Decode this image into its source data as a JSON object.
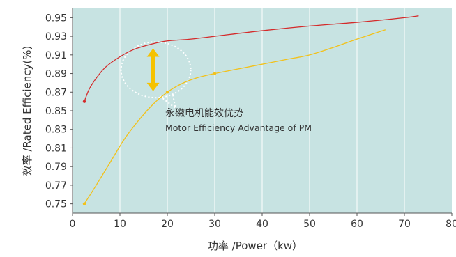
{
  "chart_data": {
    "type": "line",
    "xlabel": "功率 /Power（kw）",
    "ylabel": "效率 /Rated Efficiency(%)",
    "xlim": [
      0,
      80
    ],
    "ylim": [
      0.74,
      0.96
    ],
    "x_ticks": [
      0,
      10,
      20,
      30,
      40,
      50,
      60,
      70,
      80
    ],
    "y_ticks": [
      0.75,
      0.77,
      0.79,
      0.81,
      0.83,
      0.85,
      0.87,
      0.89,
      0.91,
      0.93,
      0.95
    ],
    "x_tick_labels": [
      "0",
      "10",
      "20",
      "30",
      "40",
      "50",
      "60",
      "70",
      "80"
    ],
    "y_tick_labels": [
      "0.75",
      "0.77",
      "0.79",
      "0.81",
      "0.83",
      "0.85",
      "0.87",
      "0.89",
      "0.91",
      "0.93",
      "0.95"
    ],
    "grid": "vertical",
    "background_color": "#c7e3e2",
    "series": [
      {
        "color": "#d42a2a",
        "marker_points": [
          [
            2.5,
            0.86
          ]
        ],
        "x": [
          2.5,
          3.5,
          5,
          7,
          10,
          13,
          17,
          20,
          25,
          30,
          40,
          50,
          60,
          70,
          73
        ],
        "y": [
          0.86,
          0.873,
          0.885,
          0.897,
          0.908,
          0.916,
          0.922,
          0.925,
          0.927,
          0.93,
          0.936,
          0.941,
          0.945,
          0.95,
          0.952
        ]
      },
      {
        "color": "#f2c11a",
        "marker_points": [
          [
            2.5,
            0.75
          ],
          [
            20,
            0.87
          ],
          [
            30,
            0.89
          ]
        ],
        "x": [
          2.5,
          5,
          8,
          11,
          14,
          17,
          20,
          23,
          26,
          30,
          35,
          40,
          45,
          50,
          55,
          60,
          66
        ],
        "y": [
          0.75,
          0.77,
          0.795,
          0.82,
          0.84,
          0.857,
          0.87,
          0.879,
          0.885,
          0.89,
          0.895,
          0.9,
          0.905,
          0.91,
          0.918,
          0.927,
          0.937
        ]
      }
    ],
    "annotation": {
      "text_cn": "永磁电机能效优势",
      "text_en": "Motor Efficiency Advantage of PM",
      "arrow_color": "#f5c200",
      "arrow_x": 17,
      "arrow_y_range": [
        0.871,
        0.917
      ]
    }
  }
}
